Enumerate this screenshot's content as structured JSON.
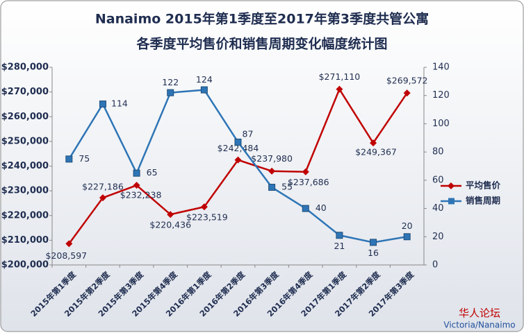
{
  "chart_data": {
    "type": "line",
    "title": "Nanaimo 2015年第1季度至2017年第3季度共管公寓",
    "subtitle": "各季度平均售价和销售周期变化幅度统计图",
    "categories": [
      "2015年第1季度",
      "2015年第2季度",
      "2015年第3季度",
      "2015年第4季度",
      "2016年第1季度",
      "2016年第2季度",
      "2016年第3季度",
      "2016年第4季度",
      "2017年第1季度",
      "2017年第2季度",
      "2017年第3季度"
    ],
    "series": [
      {
        "name": "平均售价",
        "color": "#c00000",
        "marker": "diamond",
        "values": [
          208597,
          227186,
          232238,
          220436,
          223519,
          242484,
          237980,
          237686,
          271110,
          249367,
          269572
        ],
        "value_labels": [
          "$208,597",
          "$227,186",
          "$232,238",
          "$220,436",
          "$223,519",
          "$242,484",
          "$237,980",
          "$237,686",
          "$271,110",
          "$249,367",
          "$269,572"
        ]
      },
      {
        "name": "销售周期",
        "color": "#2e75b6",
        "marker": "square",
        "axis": "y2",
        "values": [
          75,
          114,
          65,
          122,
          124,
          87,
          55,
          40,
          21,
          16,
          20
        ]
      }
    ],
    "ylim": [
      200000,
      280000
    ],
    "yticks": [
      {
        "value": 200000,
        "label": "$200,000"
      },
      {
        "value": 210000,
        "label": "$210,000"
      },
      {
        "value": 220000,
        "label": "$220,000"
      },
      {
        "value": 230000,
        "label": "$230,000"
      },
      {
        "value": 240000,
        "label": "$240,000"
      },
      {
        "value": 250000,
        "label": "$250,000"
      },
      {
        "value": 260000,
        "label": "$260,000"
      },
      {
        "value": 270000,
        "label": "$270,000"
      },
      {
        "value": 280000,
        "label": "$280,000"
      }
    ],
    "y2lim": [
      0,
      140
    ],
    "y2ticks": [
      0,
      20,
      40,
      60,
      80,
      100,
      120,
      140
    ],
    "grid": false,
    "legend": "right",
    "watermark": [
      "华人论坛",
      "Victoria/Nanaimo"
    ]
  }
}
